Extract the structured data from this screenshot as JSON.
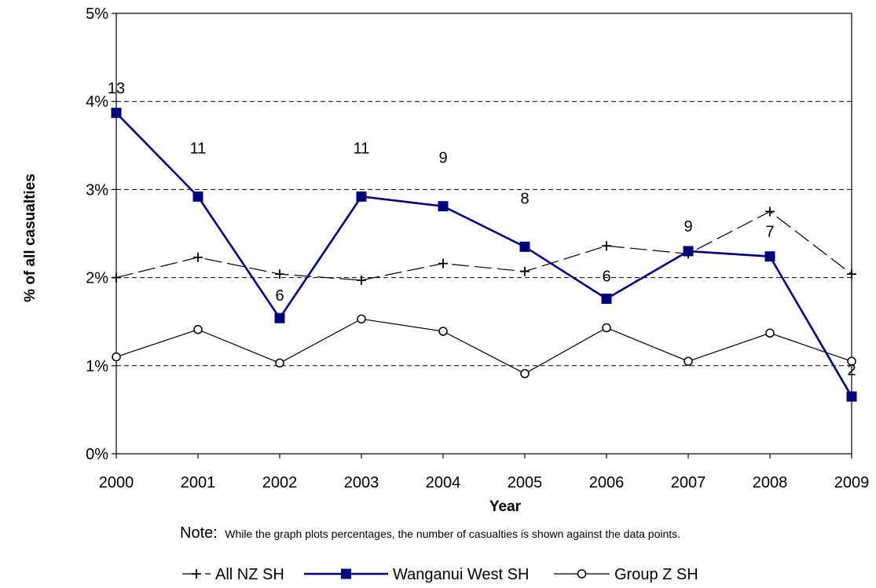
{
  "chart_data": {
    "type": "line",
    "xlabel": "Year",
    "ylabel": "% of all casualties",
    "ylim": [
      0,
      5
    ],
    "y_ticks": [
      "0%",
      "1%",
      "2%",
      "3%",
      "4%",
      "5%"
    ],
    "categories": [
      "2000",
      "2001",
      "2002",
      "2003",
      "2004",
      "2005",
      "2006",
      "2007",
      "2008",
      "2009"
    ],
    "grid": "horizontal dashed",
    "legend_position": "bottom",
    "series": [
      {
        "name": "All NZ SH",
        "values": [
          2.0,
          2.23,
          2.04,
          1.97,
          2.16,
          2.07,
          2.36,
          2.27,
          2.75,
          2.04
        ],
        "color": "#000000",
        "marker": "plus",
        "line_style": "long-dash"
      },
      {
        "name": "Wanganui West SH",
        "values": [
          3.87,
          2.92,
          1.54,
          2.92,
          2.81,
          2.35,
          1.76,
          2.3,
          2.24,
          0.65
        ],
        "data_labels": [
          "13",
          "11",
          "6",
          "11",
          "9",
          "8",
          "6",
          "9",
          "7",
          "2"
        ],
        "color": "#00007F",
        "marker": "square",
        "line_style": "solid"
      },
      {
        "name": "Group Z SH",
        "values": [
          1.1,
          1.41,
          1.03,
          1.53,
          1.39,
          0.91,
          1.43,
          1.05,
          1.37,
          1.05
        ],
        "color": "#000000",
        "marker": "circle",
        "line_style": "solid"
      }
    ]
  },
  "note": {
    "prefix": "Note:",
    "text": "While the graph plots percentages, the number of casualties is shown against the data points."
  }
}
